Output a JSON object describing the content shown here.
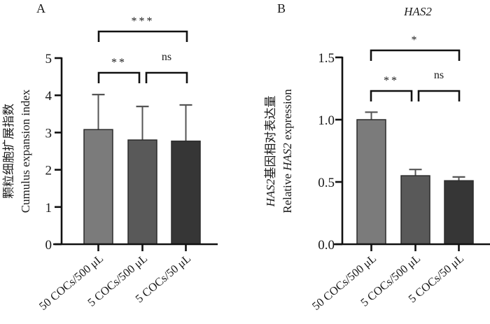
{
  "figure": {
    "panels": [
      "A",
      "B"
    ]
  },
  "chart_data": [
    {
      "type": "bar",
      "panel_label": "A",
      "title": "",
      "categories": [
        "50 COCs/500 μL",
        "5 COCs/500 μL",
        "5 COCs/50 μL"
      ],
      "values": [
        3.08,
        2.8,
        2.77
      ],
      "error_upper": [
        4.02,
        3.7,
        3.74
      ],
      "ylabel_cn": "颗粒细胞扩展指数",
      "ylabel_en": "Cumulus expansion index",
      "xlabel": "",
      "ylim": [
        0,
        5
      ],
      "yticks": [
        0,
        1,
        2,
        3,
        4,
        5
      ],
      "ytick_labels": [
        "0",
        "1",
        "2",
        "3",
        "4",
        "5"
      ],
      "bar_colors": [
        "#7b7b7b",
        "#595959",
        "#363636"
      ],
      "significance": [
        {
          "from": 0,
          "to": 2,
          "label": "***",
          "level": 2
        },
        {
          "from": 0,
          "to": 1,
          "label": "**",
          "level": 1
        },
        {
          "from": 1,
          "to": 2,
          "label": "ns",
          "level": 1
        }
      ],
      "grid": false,
      "legend": "none"
    },
    {
      "type": "bar",
      "panel_label": "B",
      "title": "HAS2",
      "categories": [
        "50 COCs/500 μL",
        "5 COCs/500 μL",
        "5 COCs/50 μL"
      ],
      "values": [
        1.0,
        0.55,
        0.51
      ],
      "error_upper": [
        1.06,
        0.6,
        0.54
      ],
      "ylabel_cn_prefix": "HAS2",
      "ylabel_cn": "基因相对表达量",
      "ylabel_en_prefix": "Relative ",
      "ylabel_en_gene": "HAS2",
      "ylabel_en_suffix": " expression",
      "xlabel": "",
      "ylim": [
        0,
        1.5
      ],
      "yticks": [
        0,
        0.5,
        1.0,
        1.5
      ],
      "ytick_labels": [
        "0.0",
        "0.5",
        "1.0",
        "1.5"
      ],
      "bar_colors": [
        "#7b7b7b",
        "#595959",
        "#363636"
      ],
      "significance": [
        {
          "from": 0,
          "to": 2,
          "label": "*",
          "level": 2
        },
        {
          "from": 0,
          "to": 1,
          "label": "**",
          "level": 1
        },
        {
          "from": 1,
          "to": 2,
          "label": "ns",
          "level": 1
        }
      ],
      "grid": false,
      "legend": "none"
    }
  ]
}
